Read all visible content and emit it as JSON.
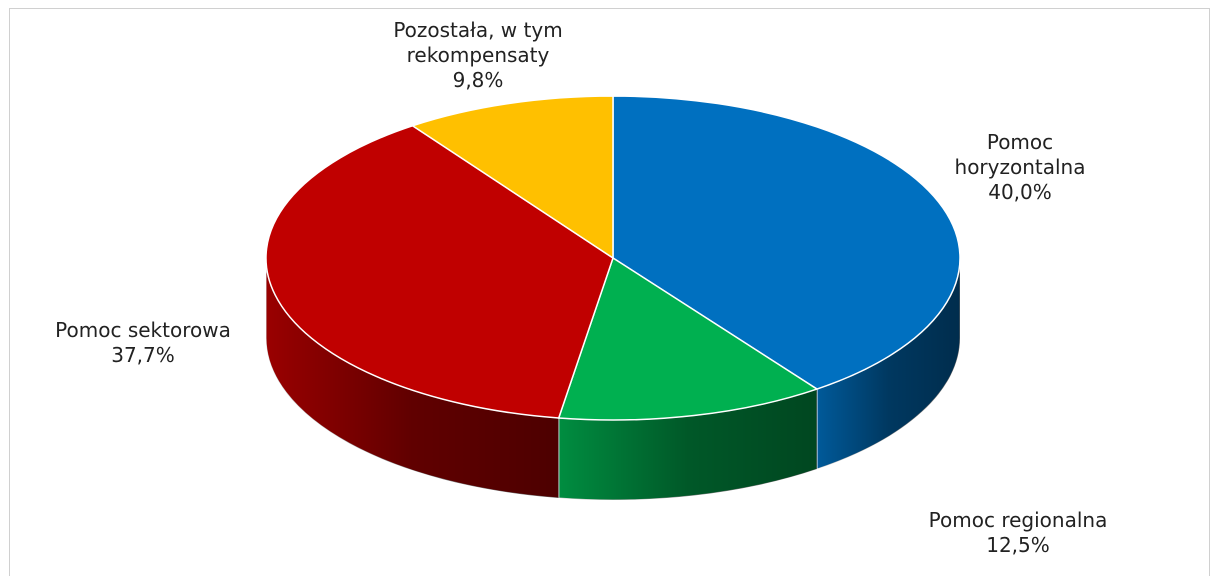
{
  "chart_data": {
    "type": "pie3d",
    "categories": [
      "Pomoc horyzontalna",
      "Pomoc regionalna",
      "Pomoc sektorowa",
      "Pozostała, w tym rekompensaty"
    ],
    "values": [
      40.0,
      12.5,
      37.7,
      9.8
    ],
    "value_labels": [
      "40,0%",
      "12,5%",
      "37,7%",
      "9,8%"
    ],
    "colors": [
      "#0070c0",
      "#00b050",
      "#c00000",
      "#ffc000"
    ]
  }
}
